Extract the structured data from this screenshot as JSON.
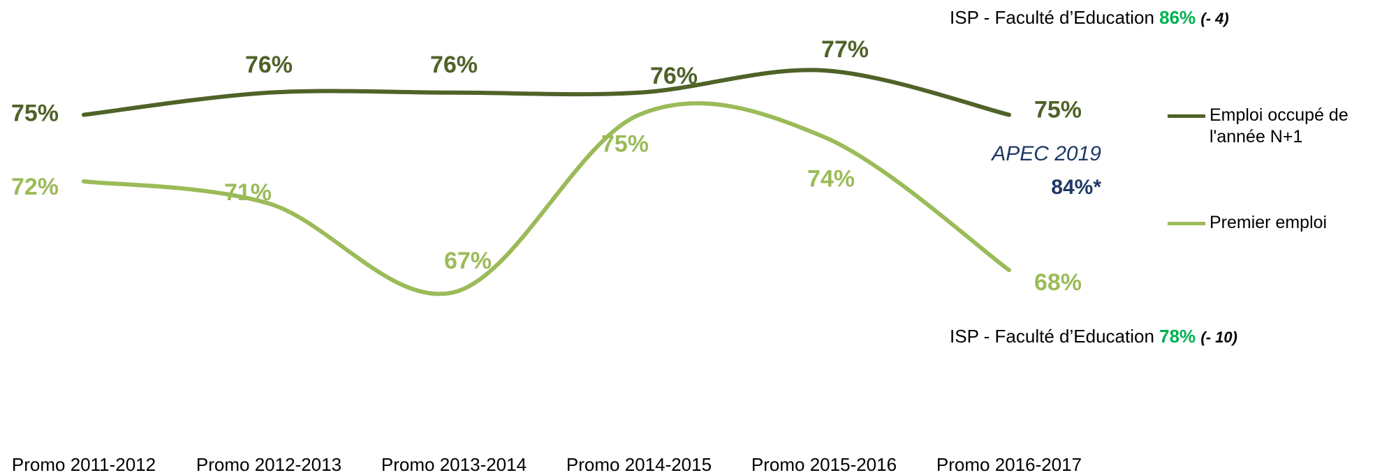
{
  "chart_data": {
    "type": "line",
    "categories": [
      "Promo 2011-2012",
      "Promo 2012-2013",
      "Promo 2013-2014",
      "Promo 2014-2015",
      "Promo 2015-2016",
      "Promo 2016-2017"
    ],
    "series": [
      {
        "name": "Emploi occupé de l'année N+1",
        "color": "#4f6228",
        "values": [
          75,
          76,
          76,
          76,
          77,
          75
        ],
        "value_labels": [
          "75%",
          "76%",
          "76%",
          "76%",
          "77%",
          "75%"
        ]
      },
      {
        "name": "Premier emploi",
        "color": "#9bbb59",
        "values": [
          72,
          71,
          67,
          75,
          74,
          68
        ],
        "value_labels": [
          "72%",
          "71%",
          "67%",
          "75%",
          "74%",
          "68%"
        ]
      }
    ],
    "legend": "right",
    "annotations": [
      {
        "text": "ISP - Faculté d’Education",
        "value": "86%",
        "note": "(- 4)"
      },
      {
        "text": "ISP - Faculté d’Education",
        "value": "78%",
        "note": "(- 10)"
      }
    ],
    "benchmark": {
      "label": "APEC 2019",
      "value": "84%*"
    }
  }
}
